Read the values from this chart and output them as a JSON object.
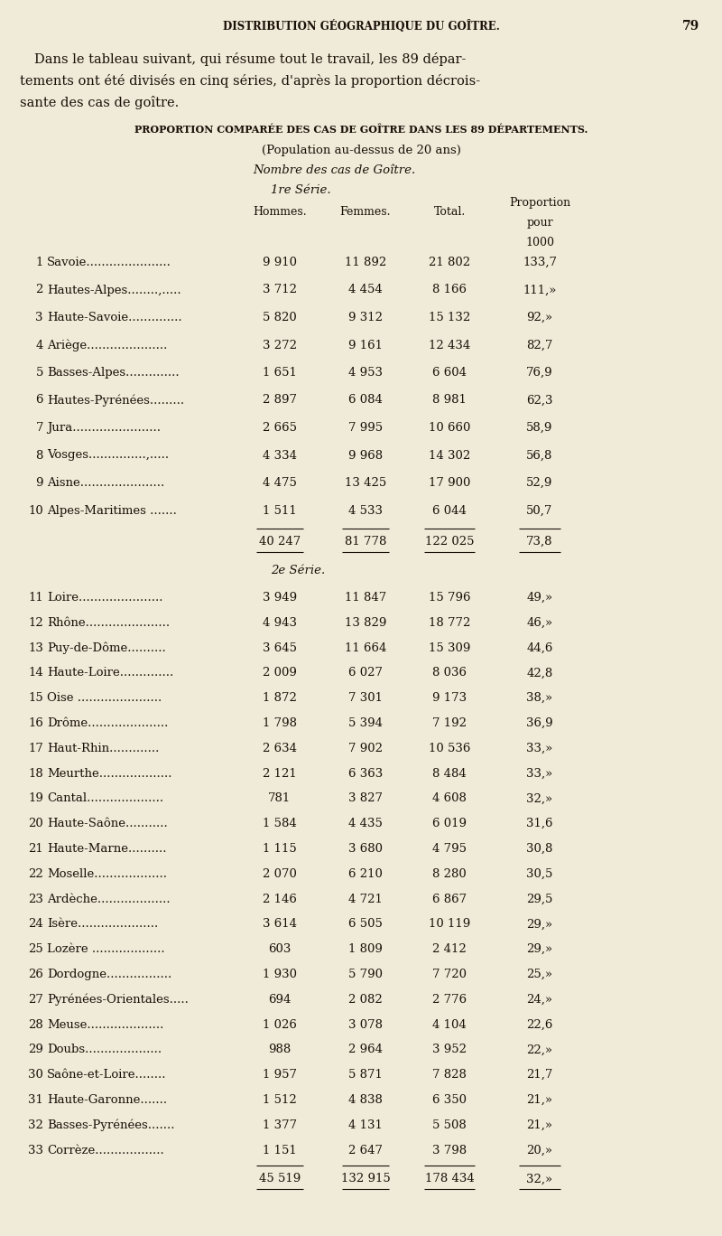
{
  "bg_color": "#f0ead8",
  "text_color": "#1a1008",
  "page_title": "DISTRIBUTION GÉOGRAPHIQUE DU GOÎTRE.",
  "page_number": "79",
  "intro_lines": [
    "Dans le tableau suivant, qui résume tout le travail, les 89 dépar-",
    "tements ont été divisés en cinq séries, d'après la proportion décrois-",
    "sante des cas de goître."
  ],
  "table_title1": "PROPORTION COMPARÉE DES CAS DE GOÎTRE DANS LES 89 DÉPARTEMENTS.",
  "table_title2": "(Population au-dessus de 20 ans)",
  "table_title3": "Nombre des cas de Goître.",
  "serie1_label": "1re Série.",
  "serie2_label": "2e Série.",
  "col_h_label": "Hommes.",
  "col_f_label": "Femmes.",
  "col_t_label": "Total.",
  "col_p_label1": "Proportion",
  "col_p_label2": "pour",
  "col_p_label3": "1000",
  "serie1_rows": [
    [
      "1",
      "Savoie",
      "9 910",
      "11 892",
      "21 802",
      "133,7"
    ],
    [
      "2",
      "Hautes-Alpes",
      "3 712",
      "4 454",
      "8 166",
      "111,»"
    ],
    [
      "3",
      "Haute-Savoie",
      "5 820",
      "9 312",
      "15 132",
      "92,»"
    ],
    [
      "4",
      "Ariège",
      "3 272",
      "9 161",
      "12 434",
      "82,7"
    ],
    [
      "5",
      "Basses-Alpes",
      "1 651",
      "4 953",
      "6 604",
      "76,9"
    ],
    [
      "6",
      "Hautes-Pyrénées",
      "2 897",
      "6 084",
      "8 981",
      "62,3"
    ],
    [
      "7",
      "Jura",
      "2 665",
      "7 995",
      "10 660",
      "58,9"
    ],
    [
      "8",
      "Vosges",
      "4 334",
      "9 968",
      "14 302",
      "56,8"
    ],
    [
      "9",
      "Aisne",
      "4 475",
      "13 425",
      "17 900",
      "52,9"
    ],
    [
      "10",
      "Alpes-Maritimes",
      "1 511",
      "4 533",
      "6 044",
      "50,7"
    ]
  ],
  "serie1_total": [
    "40 247",
    "81 778",
    "122 025",
    "73,8"
  ],
  "serie2_rows": [
    [
      "11",
      "Loire",
      "3 949",
      "11 847",
      "15 796",
      "49,»"
    ],
    [
      "12",
      "Rhône",
      "4 943",
      "13 829",
      "18 772",
      "46,»"
    ],
    [
      "13",
      "Puy-de-Dôme",
      "3 645",
      "11 664",
      "15 309",
      "44,6"
    ],
    [
      "14",
      "Haute-Loire",
      "2 009",
      "6 027",
      "8 036",
      "42,8"
    ],
    [
      "15",
      "Oise",
      "1 872",
      "7 301",
      "9 173",
      "38,»"
    ],
    [
      "16",
      "Drôme",
      "1 798",
      "5 394",
      "7 192",
      "36,9"
    ],
    [
      "17",
      "Haut-Rhin",
      "2 634",
      "7 902",
      "10 536",
      "33,»"
    ],
    [
      "18",
      "Meurthe",
      "2 121",
      "6 363",
      "8 484",
      "33,»"
    ],
    [
      "19",
      "Cantal",
      "781",
      "3 827",
      "4 608",
      "32,»"
    ],
    [
      "20",
      "Haute-Saône",
      "1 584",
      "4 435",
      "6 019",
      "31,6"
    ],
    [
      "21",
      "Haute-Marne",
      "1 115",
      "3 680",
      "4 795",
      "30,8"
    ],
    [
      "22",
      "Moselle",
      "2 070",
      "6 210",
      "8 280",
      "30,5"
    ],
    [
      "23",
      "Ardèche",
      "2 146",
      "4 721",
      "6 867",
      "29,5"
    ],
    [
      "24",
      "Isère",
      "3 614",
      "6 505",
      "10 119",
      "29,»"
    ],
    [
      "25",
      "Lozère",
      "603",
      "1 809",
      "2 412",
      "29,»"
    ],
    [
      "26",
      "Dordogne",
      "1 930",
      "5 790",
      "7 720",
      "25,»"
    ],
    [
      "27",
      "Pyrénées-Orientales",
      "694",
      "2 082",
      "2 776",
      "24,»"
    ],
    [
      "28",
      "Meuse",
      "1 026",
      "3 078",
      "4 104",
      "22,6"
    ],
    [
      "29",
      "Doubs",
      "988",
      "2 964",
      "3 952",
      "22,»"
    ],
    [
      "30",
      "Saône-et-Loire",
      "1 957",
      "5 871",
      "7 828",
      "21,7"
    ],
    [
      "31",
      "Haute-Garonne",
      "1 512",
      "4 838",
      "6 350",
      "21,»"
    ],
    [
      "32",
      "Basses-Pyrénées",
      "1 377",
      "4 131",
      "5 508",
      "21,»"
    ],
    [
      "33",
      "Corrèze",
      "1 151",
      "2 647",
      "3 798",
      "20,»"
    ]
  ],
  "serie2_total": [
    "45 519",
    "132 915",
    "178 434",
    "32,»"
  ],
  "name_dots": {
    "Savoie": "Savoie......................",
    "Hautes-Alpes": "Hautes-Alpes........,.....",
    "Haute-Savoie": "Haute-Savoie..............",
    "Ariège": "Ariège.....................",
    "Basses-Alpes": "Basses-Alpes..............",
    "Hautes-Pyrénées": "Hautes-Pyrénées.........",
    "Jura": "Jura.......................",
    "Vosges": "Vosges...............,.....",
    "Aisne": "Aisne......................",
    "Alpes-Maritimes": "Alpes-Maritimes .......",
    "Loire": "Loire......................",
    "Rhône": "Rhône......................",
    "Puy-de-Dôme": "Puy-de-Dôme..........",
    "Haute-Loire": "Haute-Loire..............",
    "Oise": "Oise ......................",
    "Drôme": "Drôme.....................",
    "Haut-Rhin": "Haut-Rhin.............",
    "Meurthe": "Meurthe...................",
    "Cantal": "Cantal....................",
    "Haute-Saône": "Haute-Saône...........",
    "Haute-Marne": "Haute-Marne..........",
    "Moselle": "Moselle...................",
    "Ardèche": "Ardèche...................",
    "Isère": "Isère.....................",
    "Lozère": "Lozère ...................",
    "Dordogne": "Dordogne.................",
    "Pyrénées-Orientales": "Pyrénées-Orientales.....",
    "Meuse": "Meuse....................",
    "Doubs": "Doubs....................",
    "Saône-et-Loire": "Saône-et-Loire........",
    "Haute-Garonne": "Haute-Garonne.......",
    "Basses-Pyrénées": "Basses-Pyrénées.......",
    "Corrèze": "Corrèze.................."
  }
}
